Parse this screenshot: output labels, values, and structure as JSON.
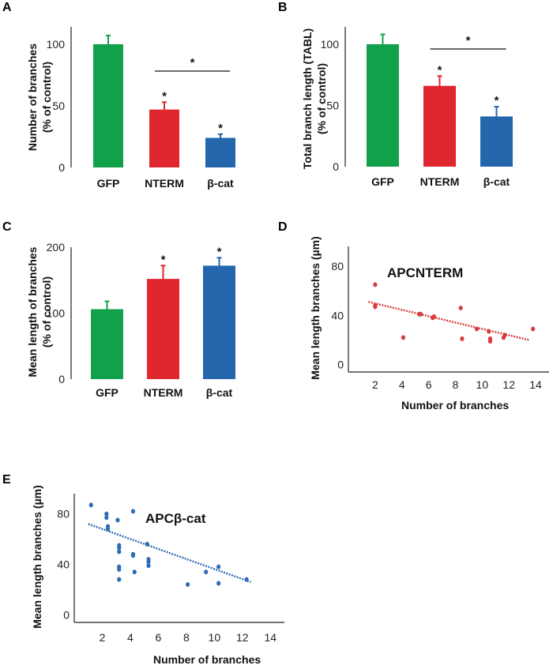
{
  "colors": {
    "green": "#12a14b",
    "red": "#e0262f",
    "blue": "#2366ac",
    "scatter_red": "#d73c3c",
    "scatter_blue": "#2d6db3"
  },
  "chart_data": [
    {
      "panel": "A",
      "type": "bar",
      "ylabel_line1": "Number of branches",
      "ylabel_line2": "(% of control)",
      "categories": [
        "GFP",
        "NTERM",
        "β-cat"
      ],
      "values": [
        100,
        47,
        24
      ],
      "errors": [
        7,
        6,
        3
      ],
      "bar_colors": [
        "green",
        "red",
        "blue"
      ],
      "bar_stars": [
        "",
        "*",
        "*"
      ],
      "bracket": {
        "from": 1,
        "to": 2,
        "label": "*"
      },
      "yticks": [
        0,
        50,
        100
      ],
      "ylim": [
        0,
        110
      ]
    },
    {
      "panel": "B",
      "type": "bar",
      "ylabel_line1": "Total branch length (TABL)",
      "ylabel_line2": "(% of control)",
      "categories": [
        "GFP",
        "NTERM",
        "β-cat"
      ],
      "values": [
        100,
        66,
        41
      ],
      "errors": [
        8,
        8,
        8
      ],
      "bar_colors": [
        "green",
        "red",
        "blue"
      ],
      "bar_stars": [
        "",
        "*",
        "*"
      ],
      "bracket": {
        "from": 1,
        "to": 2,
        "label": "*"
      },
      "yticks": [
        0,
        50,
        100
      ],
      "ylim": [
        0,
        110
      ]
    },
    {
      "panel": "C",
      "type": "bar",
      "ylabel_line1": "Mean length of branches",
      "ylabel_line2": "(% of control)",
      "categories": [
        "GFP",
        "NTERM",
        "β-cat"
      ],
      "values": [
        106,
        152,
        172
      ],
      "errors": [
        12,
        20,
        12
      ],
      "bar_colors": [
        "green",
        "red",
        "blue"
      ],
      "bar_stars": [
        "",
        "*",
        "*"
      ],
      "yticks": [
        0,
        100,
        200
      ],
      "ylim": [
        0,
        240
      ]
    },
    {
      "panel": "D",
      "type": "scatter",
      "title": "APCNTERM",
      "xlabel": "Number of branches",
      "ylabel": "Mean length branches (µm)",
      "xticks": [
        2,
        4,
        6,
        8,
        10,
        12,
        14
      ],
      "yticks": [
        0,
        40,
        80
      ],
      "xlim": [
        0,
        15
      ],
      "ylim": [
        -6,
        96
      ],
      "points": [
        [
          2,
          65
        ],
        [
          2,
          48
        ],
        [
          2,
          47
        ],
        [
          4.1,
          22
        ],
        [
          5.3,
          41
        ],
        [
          5.4,
          41
        ],
        [
          6.3,
          38
        ],
        [
          6.4,
          39
        ],
        [
          8.4,
          46
        ],
        [
          8.5,
          21
        ],
        [
          9.6,
          29
        ],
        [
          10.5,
          27
        ],
        [
          10.6,
          21
        ],
        [
          10.6,
          19
        ],
        [
          11.6,
          22
        ],
        [
          11.7,
          24
        ],
        [
          13.8,
          29
        ]
      ],
      "trend": {
        "x": [
          1.5,
          13.5
        ],
        "y": [
          51,
          20
        ]
      },
      "color": "scatter_red"
    },
    {
      "panel": "E",
      "type": "scatter",
      "title": "APCβ-cat",
      "xlabel": "Number of branches",
      "ylabel": "Mean length branches (µm)",
      "xticks": [
        2,
        4,
        6,
        8,
        10,
        12,
        14
      ],
      "yticks": [
        0,
        40,
        80
      ],
      "xlim": [
        0,
        15
      ],
      "ylim": [
        -6,
        96
      ],
      "points": [
        [
          1.2,
          87
        ],
        [
          2.3,
          80
        ],
        [
          2.3,
          77
        ],
        [
          2.4,
          70
        ],
        [
          2.4,
          68
        ],
        [
          3.1,
          75
        ],
        [
          4.2,
          82
        ],
        [
          3.2,
          55
        ],
        [
          3.2,
          53
        ],
        [
          3.2,
          50
        ],
        [
          4.2,
          48
        ],
        [
          4.2,
          47
        ],
        [
          5.2,
          56
        ],
        [
          5.3,
          44
        ],
        [
          5.3,
          42
        ],
        [
          5.3,
          39
        ],
        [
          3.2,
          38
        ],
        [
          3.2,
          36
        ],
        [
          4.3,
          34
        ],
        [
          3.2,
          28
        ],
        [
          8.1,
          24
        ],
        [
          9.4,
          34
        ],
        [
          10.3,
          38
        ],
        [
          10.3,
          25
        ],
        [
          12.3,
          28
        ]
      ],
      "trend": {
        "x": [
          1.0,
          12.6
        ],
        "y": [
          72,
          26
        ]
      },
      "color": "scatter_blue"
    }
  ]
}
